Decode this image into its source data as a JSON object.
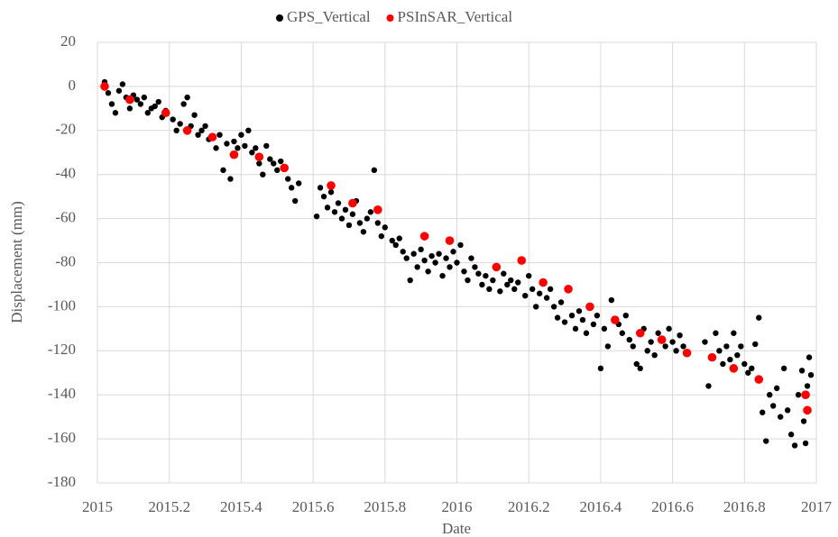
{
  "chart_data": {
    "type": "scatter",
    "xlabel": "Date",
    "ylabel": "Displacement (mm)",
    "xlim": [
      2015,
      2017
    ],
    "xticks": [
      2015,
      2015.2,
      2015.4,
      2015.6,
      2015.8,
      2016,
      2016.2,
      2016.4,
      2016.6,
      2016.8,
      2017
    ],
    "ylim": [
      -180,
      20
    ],
    "yticks": [
      -180,
      -160,
      -140,
      -120,
      -100,
      -80,
      -60,
      -40,
      -20,
      0,
      20
    ],
    "grid": true,
    "legend": "top",
    "series": [
      {
        "name": "GPS_Vertical",
        "color": "#000000",
        "x": [
          2015.02,
          2015.03,
          2015.04,
          2015.05,
          2015.06,
          2015.07,
          2015.08,
          2015.09,
          2015.1,
          2015.11,
          2015.12,
          2015.13,
          2015.14,
          2015.15,
          2015.16,
          2015.17,
          2015.18,
          2015.19,
          2015.21,
          2015.22,
          2015.23,
          2015.24,
          2015.25,
          2015.26,
          2015.27,
          2015.28,
          2015.29,
          2015.3,
          2015.31,
          2015.33,
          2015.34,
          2015.35,
          2015.36,
          2015.37,
          2015.38,
          2015.39,
          2015.4,
          2015.41,
          2015.42,
          2015.43,
          2015.44,
          2015.45,
          2015.46,
          2015.47,
          2015.48,
          2015.49,
          2015.5,
          2015.51,
          2015.53,
          2015.54,
          2015.55,
          2015.56,
          2015.61,
          2015.62,
          2015.63,
          2015.64,
          2015.65,
          2015.66,
          2015.67,
          2015.68,
          2015.69,
          2015.7,
          2015.71,
          2015.72,
          2015.73,
          2015.74,
          2015.75,
          2015.76,
          2015.77,
          2015.78,
          2015.79,
          2015.8,
          2015.82,
          2015.83,
          2015.84,
          2015.85,
          2015.86,
          2015.87,
          2015.88,
          2015.89,
          2015.9,
          2015.91,
          2015.92,
          2015.93,
          2015.94,
          2015.95,
          2015.96,
          2015.97,
          2015.98,
          2015.99,
          2016.0,
          2016.01,
          2016.02,
          2016.03,
          2016.04,
          2016.05,
          2016.06,
          2016.07,
          2016.08,
          2016.09,
          2016.1,
          2016.12,
          2016.13,
          2016.14,
          2016.15,
          2016.16,
          2016.17,
          2016.19,
          2016.2,
          2016.21,
          2016.22,
          2016.23,
          2016.25,
          2016.26,
          2016.27,
          2016.28,
          2016.29,
          2016.3,
          2016.32,
          2016.33,
          2016.34,
          2016.35,
          2016.36,
          2016.38,
          2016.39,
          2016.4,
          2016.41,
          2016.42,
          2016.43,
          2016.45,
          2016.46,
          2016.47,
          2016.48,
          2016.49,
          2016.5,
          2016.51,
          2016.52,
          2016.53,
          2016.54,
          2016.55,
          2016.56,
          2016.58,
          2016.59,
          2016.6,
          2016.61,
          2016.62,
          2016.63,
          2016.69,
          2016.7,
          2016.72,
          2016.73,
          2016.74,
          2016.75,
          2016.76,
          2016.77,
          2016.78,
          2016.79,
          2016.8,
          2016.81,
          2016.82,
          2016.83,
          2016.84,
          2016.85,
          2016.86,
          2016.87,
          2016.88,
          2016.89,
          2016.9,
          2016.91,
          2016.92,
          2016.93,
          2016.94,
          2016.95,
          2016.96,
          2016.965,
          2016.97,
          2016.975,
          2016.98,
          2016.985
        ],
        "values": [
          2,
          -3,
          -8,
          -12,
          -2,
          1,
          -5,
          -10,
          -4,
          -6,
          -8,
          -5,
          -12,
          -10,
          -9,
          -7,
          -14,
          -11,
          -15,
          -20,
          -17,
          -8,
          -5,
          -18,
          -13,
          -22,
          -20,
          -18,
          -24,
          -28,
          -22,
          -38,
          -26,
          -42,
          -25,
          -28,
          -22,
          -27,
          -20,
          -30,
          -28,
          -35,
          -40,
          -27,
          -33,
          -35,
          -38,
          -34,
          -42,
          -46,
          -52,
          -44,
          -59,
          -46,
          -50,
          -55,
          -48,
          -57,
          -53,
          -60,
          -56,
          -63,
          -58,
          -52,
          -62,
          -66,
          -60,
          -57,
          -38,
          -62,
          -68,
          -64,
          -70,
          -72,
          -69,
          -75,
          -78,
          -88,
          -76,
          -82,
          -74,
          -79,
          -84,
          -77,
          -80,
          -76,
          -86,
          -78,
          -82,
          -75,
          -80,
          -72,
          -84,
          -88,
          -78,
          -82,
          -85,
          -90,
          -86,
          -92,
          -88,
          -93,
          -85,
          -90,
          -88,
          -92,
          -89,
          -95,
          -86,
          -92,
          -100,
          -94,
          -96,
          -92,
          -100,
          -105,
          -98,
          -107,
          -104,
          -110,
          -102,
          -106,
          -112,
          -108,
          -104,
          -128,
          -110,
          -118,
          -97,
          -108,
          -112,
          -104,
          -115,
          -118,
          -126,
          -128,
          -110,
          -120,
          -116,
          -122,
          -112,
          -118,
          -110,
          -116,
          -120,
          -113,
          -118,
          -116,
          -136,
          -112,
          -120,
          -126,
          -118,
          -124,
          -112,
          -122,
          -118,
          -126,
          -130,
          -128,
          -117,
          -105,
          -148,
          -161,
          -140,
          -145,
          -137,
          -150,
          -128,
          -147,
          -158,
          -163,
          -140,
          -129,
          -152,
          -162,
          -136,
          -123,
          -131
        ]
      },
      {
        "name": "PSInSAR_Vertical",
        "color": "#ff0000",
        "x": [
          2015.02,
          2015.09,
          2015.19,
          2015.25,
          2015.32,
          2015.38,
          2015.45,
          2015.52,
          2015.65,
          2015.71,
          2015.78,
          2015.91,
          2015.98,
          2016.11,
          2016.18,
          2016.24,
          2016.31,
          2016.37,
          2016.44,
          2016.51,
          2016.57,
          2016.64,
          2016.71,
          2016.77,
          2016.84,
          2016.97,
          2016.975
        ],
        "values": [
          0,
          -6,
          -12,
          -20,
          -23,
          -31,
          -32,
          -37,
          -45,
          -53,
          -56,
          -68,
          -70,
          -82,
          -79,
          -89,
          -92,
          -100,
          -106,
          -112,
          -115,
          -121,
          -123,
          -128,
          -133,
          -140,
          -147
        ]
      }
    ]
  }
}
